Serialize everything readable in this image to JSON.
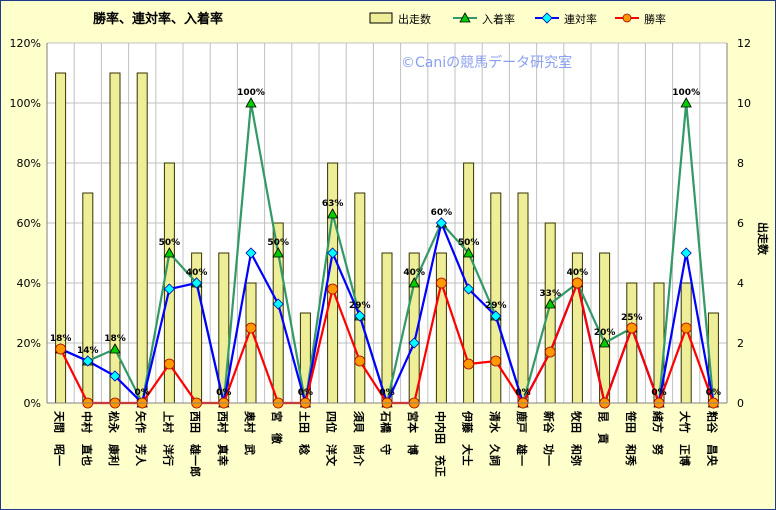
{
  "chart_data": {
    "type": "bar",
    "title": "勝率、連対率、入着率",
    "watermark": "©Caniの競馬データ研究室",
    "y2label": "出走数",
    "ylim": [
      0,
      120
    ],
    "y2lim": [
      0,
      12
    ],
    "yticks": [
      "0%",
      "20%",
      "40%",
      "60%",
      "80%",
      "100%",
      "120%"
    ],
    "y2ticks": [
      "0",
      "2",
      "4",
      "6",
      "8",
      "10",
      "12"
    ],
    "grid": true,
    "legend_position": "top",
    "categories": [
      "天間　昭一",
      "中村　直也",
      "松永　康利",
      "矢作　芳人",
      "上村　洋行",
      "西田　雄一郎",
      "西村　真幸",
      "奥村　武",
      "宮　徹",
      "土田　稔",
      "四位　洋文",
      "須貝　尚介",
      "石橋　守",
      "宮本　博",
      "中内田　充正",
      "伊藤　大士",
      "清水　久詞",
      "鹿戸　雄一",
      "新谷　功一",
      "牧田　和弥",
      "昆　貢",
      "笹田　和秀",
      "緒方　努",
      "大竹　正博",
      "粕谷　昌央"
    ],
    "series": [
      {
        "name": "出走数",
        "type": "bar",
        "axis": "right",
        "color": "#eeee99",
        "values": [
          11,
          7,
          11,
          11,
          8,
          5,
          5,
          4,
          6,
          3,
          8,
          7,
          5,
          5,
          5,
          8,
          7,
          7,
          6,
          5,
          5,
          4,
          4,
          4,
          3
        ]
      },
      {
        "name": "入着率",
        "type": "line",
        "axis": "left",
        "color": "#339966",
        "marker": "triangle",
        "values": [
          18,
          14,
          18,
          0,
          50,
          40,
          0,
          100,
          50,
          0,
          63,
          29,
          0,
          40,
          60,
          50,
          29,
          0,
          33,
          40,
          20,
          25,
          0,
          100,
          0
        ]
      },
      {
        "name": "連対率",
        "type": "line",
        "axis": "left",
        "color": "#0000ff",
        "marker": "diamond",
        "values": [
          18,
          14,
          9,
          0,
          38,
          40,
          0,
          50,
          33,
          0,
          50,
          29,
          0,
          20,
          60,
          38,
          29,
          0,
          17,
          40,
          0,
          25,
          0,
          50,
          0
        ]
      },
      {
        "name": "勝率",
        "type": "line",
        "axis": "left",
        "color": "#ff0000",
        "marker": "circle",
        "values": [
          18,
          0,
          0,
          0,
          13,
          0,
          0,
          25,
          0,
          0,
          38,
          14,
          0,
          0,
          40,
          13,
          14,
          0,
          17,
          40,
          0,
          25,
          0,
          25,
          0
        ]
      }
    ],
    "data_labels": [
      "18%",
      "14%",
      "18%",
      "0%",
      "50%",
      "40%",
      "0%",
      "100%",
      "50%",
      "0%",
      "63%",
      "29%",
      "0%",
      "40%",
      "60%",
      "50%",
      "29%",
      "0%",
      "33%",
      "40%",
      "20%",
      "25%",
      "0%",
      "100%",
      "0%"
    ]
  }
}
